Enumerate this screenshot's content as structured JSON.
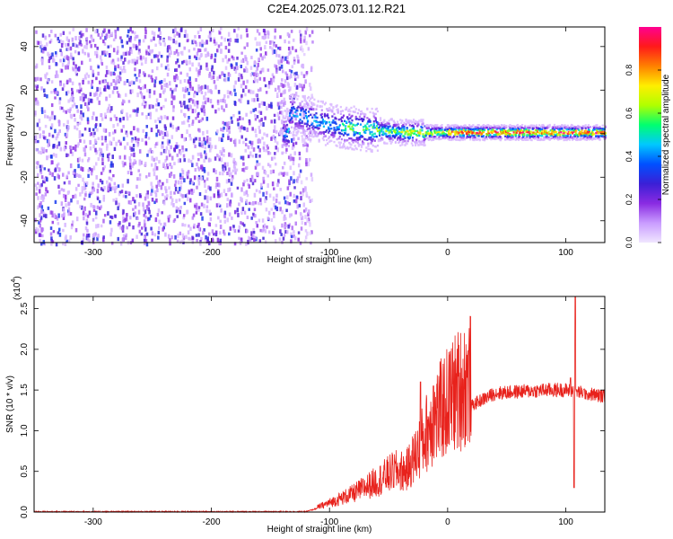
{
  "title": "C2E4.2025.073.01.12.R21",
  "chart_data": [
    {
      "type": "heatmap",
      "xlabel": "Height of straight line (km)",
      "ylabel": "Frequency (Hz)",
      "xlim": [
        -350,
        133
      ],
      "ylim": [
        -50,
        49
      ],
      "xticks": [
        -300,
        -200,
        -100,
        0,
        100
      ],
      "yticks": [
        -40,
        -20,
        0,
        20,
        40
      ],
      "colorbar": {
        "label": "Normalized spectral amplitude",
        "range": [
          0,
          1
        ],
        "ticks": [
          0.0,
          0.2,
          0.4,
          0.6,
          0.8
        ],
        "colormap": [
          "#f0e6ff",
          "#c99cff",
          "#8a2be2",
          "#3b1fd6",
          "#0050ff",
          "#00c8ff",
          "#00ff70",
          "#b0ff00",
          "#ffee00",
          "#ff8000",
          "#ff1a1a",
          "#ff0090"
        ]
      },
      "ridge": [
        {
          "x": -135,
          "f": 10
        },
        {
          "x": -120,
          "f": 8
        },
        {
          "x": -110,
          "f": 6
        },
        {
          "x": -95,
          "f": 4
        },
        {
          "x": -80,
          "f": 3
        },
        {
          "x": -60,
          "f": 2
        },
        {
          "x": -40,
          "f": 1
        },
        {
          "x": -20,
          "f": 1
        },
        {
          "x": 0,
          "f": 1
        },
        {
          "x": 50,
          "f": 1
        },
        {
          "x": 100,
          "f": 1
        },
        {
          "x": 133,
          "f": 1
        }
      ],
      "noise_region_x": [
        -350,
        -125
      ]
    },
    {
      "type": "line",
      "xlabel": "Height of straight line (km)",
      "ylabel": "SNR (10 * v/v)",
      "yscale_label": "(x10",
      "yscale_exp": "4",
      "xlim": [
        -350,
        133
      ],
      "ylim": [
        0,
        26500
      ],
      "xticks": [
        -300,
        -200,
        -100,
        0,
        100
      ],
      "yticks": [
        0.0,
        0.5,
        1.0,
        1.5,
        2.0,
        2.5
      ],
      "line_color": "#e8221c",
      "envelope": [
        {
          "x": -350,
          "y": 50
        },
        {
          "x": -120,
          "y": 50
        },
        {
          "x": -100,
          "y": 900
        },
        {
          "x": -80,
          "y": 1800
        },
        {
          "x": -60,
          "y": 3000
        },
        {
          "x": -45,
          "y": 4000
        },
        {
          "x": -35,
          "y": 4000
        },
        {
          "x": -25,
          "y": 6000
        },
        {
          "x": -15,
          "y": 8500
        },
        {
          "x": -5,
          "y": 10000
        },
        {
          "x": 5,
          "y": 11500
        },
        {
          "x": 15,
          "y": 12500
        },
        {
          "x": 25,
          "y": 13500
        },
        {
          "x": 40,
          "y": 14600
        },
        {
          "x": 60,
          "y": 14800
        },
        {
          "x": 85,
          "y": 15000
        },
        {
          "x": 100,
          "y": 15000
        },
        {
          "x": 133,
          "y": 14200
        }
      ],
      "spikes": [
        {
          "x": -23,
          "y": 16000
        },
        {
          "x": -12,
          "y": 15500
        },
        {
          "x": 104,
          "y": 16500
        },
        {
          "x": 108,
          "y": 26500
        },
        {
          "x": 107,
          "y": 3000
        },
        {
          "x": 118,
          "y": 14500
        }
      ]
    }
  ]
}
